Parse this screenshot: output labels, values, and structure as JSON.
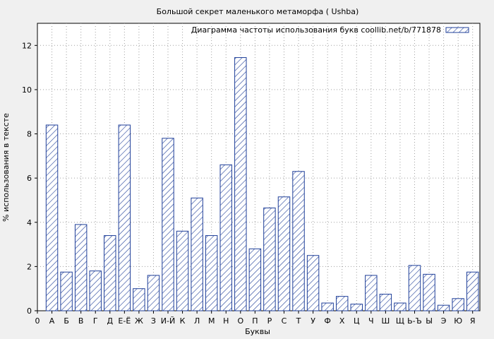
{
  "chart_data": {
    "type": "bar",
    "title": "Большой секрет маленького метаморфа ( Ushba)",
    "xlabel": "Буквы",
    "ylabel": "% использования в тексте",
    "legend": "Диаграмма частоты использования букв coollib.net/b/771878",
    "legend_position": "top-right",
    "grid": true,
    "ylim": [
      0,
      13
    ],
    "yticks": [
      0,
      2,
      4,
      6,
      8,
      10,
      12
    ],
    "categories": [
      "0",
      "А",
      "Б",
      "В",
      "Г",
      "Д",
      "Е-Ё",
      "Ж",
      "З",
      "И-Й",
      "К",
      "Л",
      "М",
      "Н",
      "О",
      "П",
      "Р",
      "С",
      "Т",
      "У",
      "Ф",
      "Х",
      "Ц",
      "Ч",
      "Ш",
      "Щ",
      "Ь-Ъ",
      "Ы",
      "Э",
      "Ю",
      "Я"
    ],
    "values": [
      null,
      8.4,
      1.75,
      3.9,
      1.8,
      3.4,
      8.4,
      1.0,
      1.6,
      7.8,
      3.6,
      5.1,
      3.4,
      6.6,
      11.45,
      2.8,
      4.65,
      5.15,
      6.3,
      2.5,
      0.35,
      0.65,
      0.3,
      1.6,
      0.75,
      0.35,
      2.05,
      1.65,
      0.25,
      0.55,
      1.75
    ],
    "colors": {
      "bar_stroke": "#1f3f99",
      "hatch": "#1f3f99",
      "background": "#f0f0f0",
      "plot_background": "#ffffff"
    }
  }
}
